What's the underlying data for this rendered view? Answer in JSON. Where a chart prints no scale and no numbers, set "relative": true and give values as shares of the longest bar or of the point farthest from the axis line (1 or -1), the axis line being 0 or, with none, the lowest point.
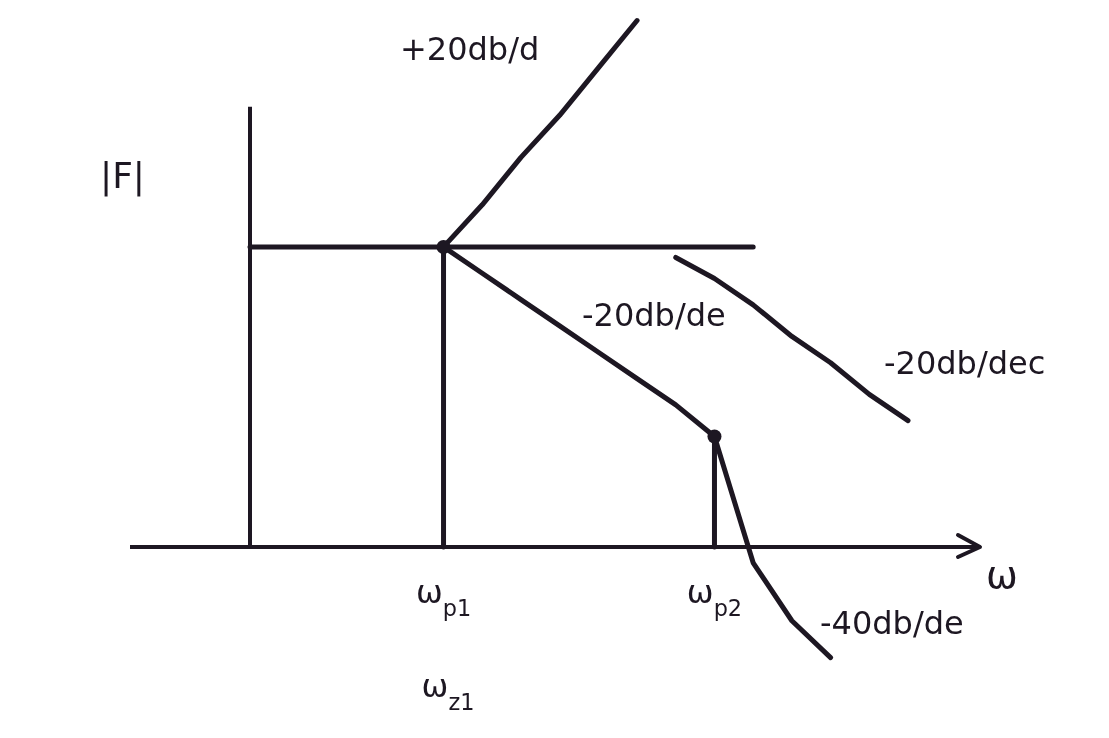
{
  "chart_data": {
    "type": "line",
    "relative": true,
    "xlabel": "ω",
    "ylabel": "|F|",
    "categories": [
      null,
      null,
      null,
      null,
      null,
      "ω$_{p1}$",
      null,
      null,
      null,
      null,
      null,
      null,
      "ω$_{p2}$",
      null,
      null,
      null,
      null,
      null
    ],
    "series": [
      {
        "color": "#1d1722",
        "values": [
          0.57,
          0.57,
          0.57,
          0.57,
          0.57,
          0.57,
          0.57,
          0.57,
          0.57,
          0.57,
          0.57,
          0.57,
          0.57,
          0.57,
          null,
          null,
          null,
          null
        ]
      },
      {
        "color": "#1d1722",
        "values": [
          null,
          null,
          null,
          null,
          null,
          0.57,
          0.65,
          0.74,
          0.82,
          0.91,
          1,
          null,
          null,
          null,
          null,
          null,
          null,
          null
        ]
      },
      {
        "color": "#1d1722",
        "values": [
          null,
          null,
          null,
          null,
          null,
          0.57,
          0.52,
          0.47,
          0.42,
          0.37,
          0.32,
          0.27,
          0.21,
          null,
          null,
          null,
          null,
          null
        ]
      },
      {
        "color": "#1d1722",
        "values": [
          null,
          null,
          null,
          null,
          null,
          null,
          null,
          null,
          null,
          null,
          null,
          null,
          0.21,
          -0.03,
          -0.14,
          -0.21,
          null,
          null
        ]
      },
      {
        "color": "#1d1722",
        "values": [
          null,
          null,
          null,
          null,
          null,
          null,
          null,
          null,
          null,
          null,
          null,
          0.55,
          0.51,
          0.46,
          0.4,
          0.35,
          0.29,
          0.24
        ]
      },
      {
        "type": "lollipop",
        "color": "#1d1722",
        "values": [
          null,
          null,
          null,
          null,
          null,
          0.57,
          null,
          null,
          null,
          null,
          null,
          null,
          0.21,
          null,
          null,
          null,
          null,
          null
        ]
      }
    ],
    "annotations": [
      "+20db/d",
      "-20db/de",
      "-20db/dec",
      "-40db/de",
      "ω$_{z1}$"
    ]
  }
}
